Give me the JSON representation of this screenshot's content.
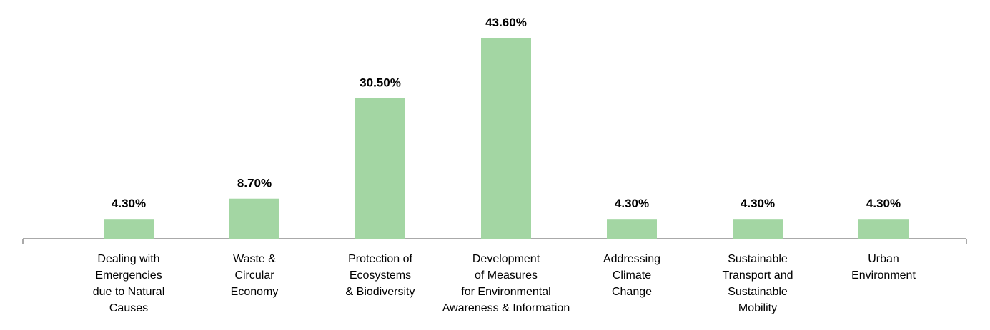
{
  "chart_data": {
    "type": "bar",
    "categories": [
      [
        "Dealing with",
        "Emergencies",
        "due to Natural",
        "Causes"
      ],
      [
        "Waste &",
        "Circular",
        "Economy"
      ],
      [
        "Protection of",
        "Ecosystems",
        "& Biodiversity"
      ],
      [
        "Development",
        "of Measures",
        "for Environmental",
        "Awareness & Information"
      ],
      [
        "Addressing",
        "Climate",
        "Change"
      ],
      [
        "Sustainable",
        "Transport and",
        "Sustainable",
        "Mobility"
      ],
      [
        "Urban",
        "Environment"
      ]
    ],
    "values": [
      4.3,
      8.7,
      30.5,
      43.6,
      4.3,
      4.3,
      4.3
    ],
    "value_labels": [
      "4.30%",
      "8.70%",
      "30.50%",
      "43.60%",
      "4.30%",
      "4.30%",
      "4.30%"
    ],
    "color": "#a3d6a3"
  }
}
